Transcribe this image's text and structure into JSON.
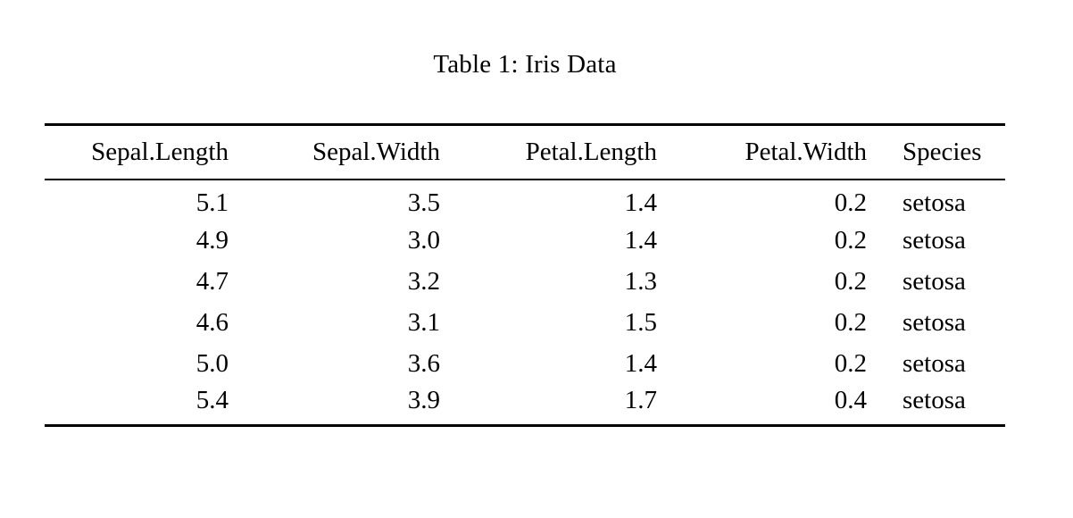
{
  "caption": "Table 1: Iris Data",
  "table": {
    "columns": [
      "Sepal.Length",
      "Sepal.Width",
      "Petal.Length",
      "Petal.Width",
      "Species"
    ],
    "rows": [
      [
        "5.1",
        "3.5",
        "1.4",
        "0.2",
        "setosa"
      ],
      [
        "4.9",
        "3.0",
        "1.4",
        "0.2",
        "setosa"
      ],
      [
        "4.7",
        "3.2",
        "1.3",
        "0.2",
        "setosa"
      ],
      [
        "4.6",
        "3.1",
        "1.5",
        "0.2",
        "setosa"
      ],
      [
        "5.0",
        "3.6",
        "1.4",
        "0.2",
        "setosa"
      ],
      [
        "5.4",
        "3.9",
        "1.7",
        "0.4",
        "setosa"
      ]
    ]
  }
}
